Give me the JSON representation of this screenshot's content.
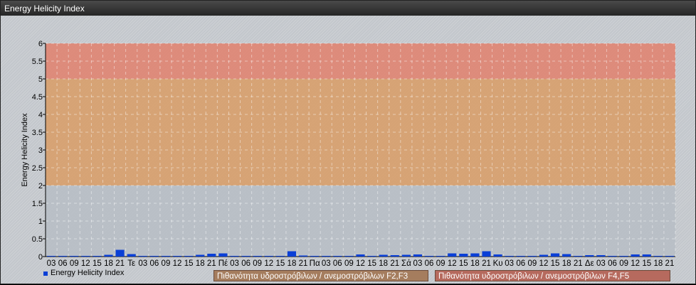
{
  "window": {
    "title": "Energy Helicity Index"
  },
  "chart_data": {
    "type": "bar",
    "title": "",
    "ylabel": "Energy Helicity Index",
    "xlabel": "",
    "ylim": [
      0,
      6
    ],
    "yticks": [
      "0",
      "0.5",
      "1",
      "1.5",
      "2",
      "2.5",
      "3",
      "3.5",
      "4",
      "4.5",
      "5",
      "5.5",
      "6"
    ],
    "grid": true,
    "bar_color": "#0a3fd6",
    "bands": [
      {
        "from": 0,
        "to": 2,
        "color": "#b9bec6"
      },
      {
        "from": 2,
        "to": 5,
        "color": "#d8a06e",
        "label": "Πιθανότητα υδροστρόβιλων / ανεμοστρόβιλων F2,F3"
      },
      {
        "from": 5,
        "to": 6,
        "color": "#df8674",
        "label": "Πιθανότητα υδροστρόβιλων / ανεμοστρόβιλων F4,F5"
      }
    ],
    "categories": [
      "03",
      "06",
      "09",
      "12",
      "15",
      "18",
      "21",
      "Τε",
      "03",
      "06",
      "09",
      "12",
      "15",
      "18",
      "21",
      "Πέ",
      "03",
      "06",
      "09",
      "12",
      "15",
      "18",
      "21",
      "Πα",
      "03",
      "06",
      "09",
      "12",
      "15",
      "18",
      "21",
      "Σά",
      "03",
      "06",
      "09",
      "12",
      "15",
      "18",
      "21",
      "Κυ",
      "03",
      "06",
      "09",
      "12",
      "15",
      "18",
      "21",
      "Δε",
      "03",
      "06",
      "09",
      "12",
      "15",
      "18",
      "21"
    ],
    "series": [
      {
        "name": "Energy Helicity Index",
        "values": [
          0.02,
          0.02,
          0.02,
          0.02,
          0.02,
          0.05,
          0.19,
          0.07,
          0.02,
          0.02,
          0.02,
          0.02,
          0.02,
          0.05,
          0.08,
          0.09,
          0.02,
          0.02,
          0.02,
          0.02,
          0.02,
          0.15,
          0.03,
          0.02,
          0.02,
          0.02,
          0.02,
          0.06,
          0.02,
          0.05,
          0.04,
          0.05,
          0.06,
          0.02,
          0.02,
          0.09,
          0.08,
          0.09,
          0.15,
          0.06,
          0.02,
          0.02,
          0.02,
          0.05,
          0.09,
          0.07,
          0.02,
          0.04,
          0.04,
          0.02,
          0.02,
          0.06,
          0.06,
          0.02,
          0.02
        ]
      }
    ],
    "legend": "bottom-left"
  }
}
